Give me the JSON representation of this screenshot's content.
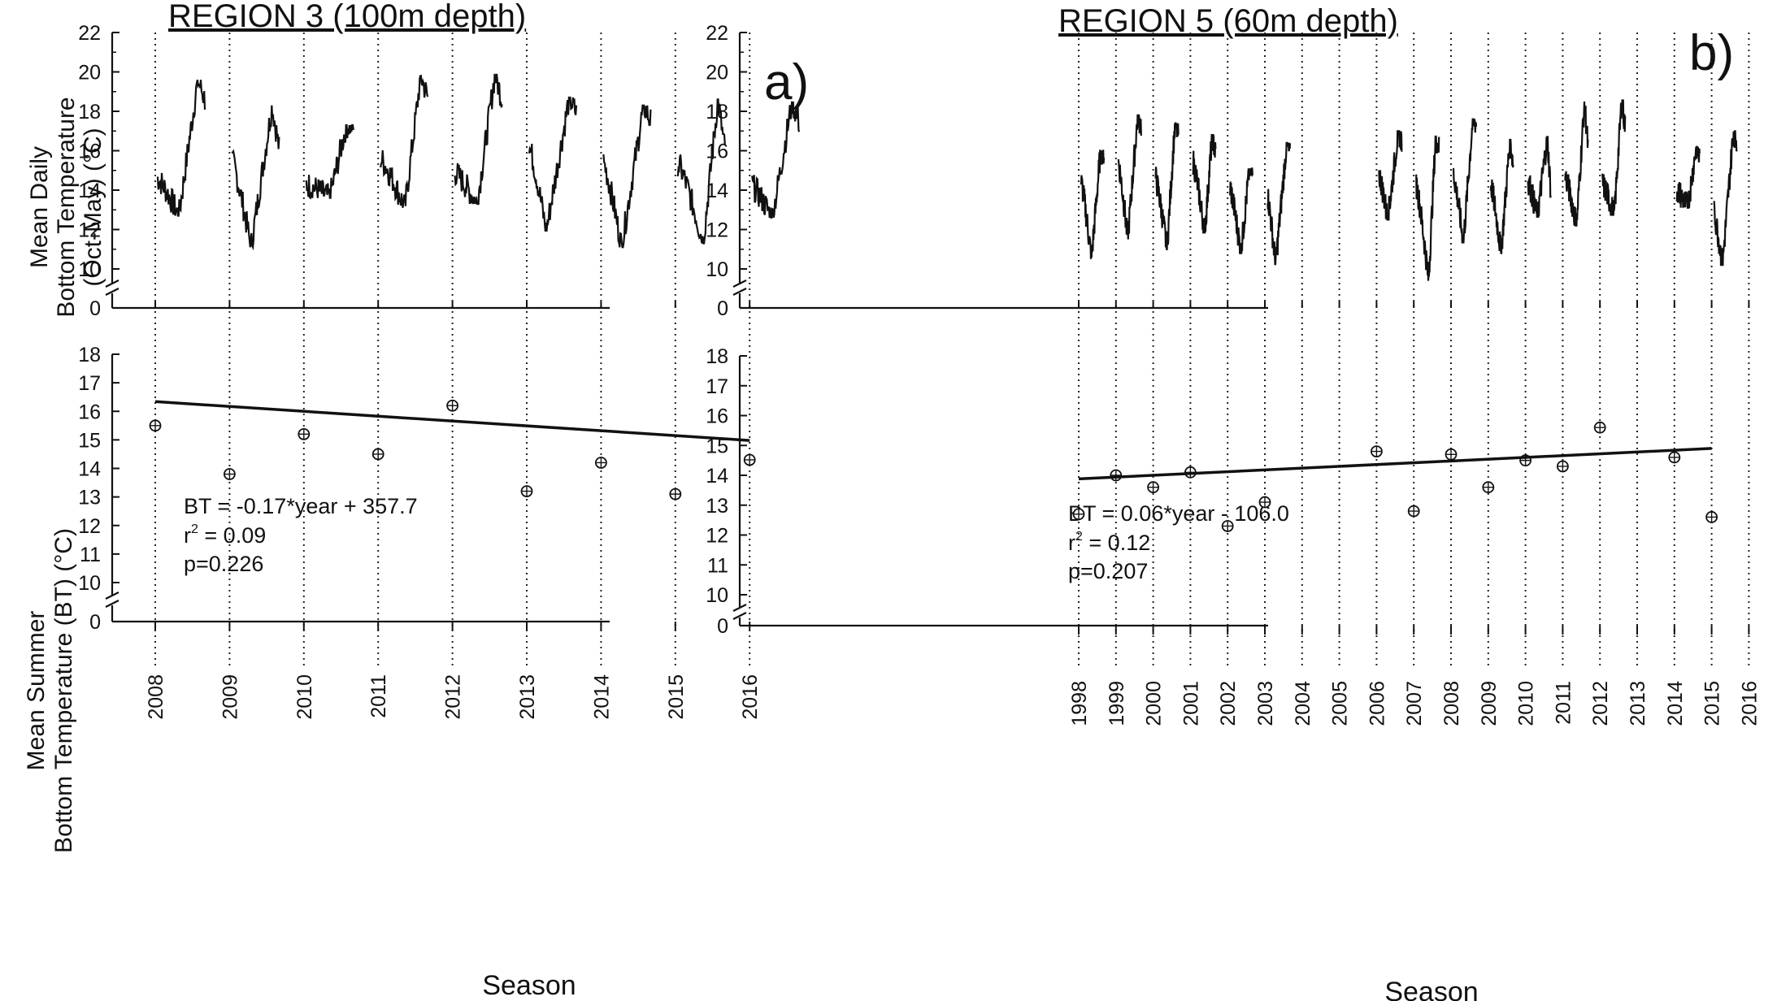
{
  "panels": [
    {
      "title": "REGION 3 (100m depth)",
      "label": "a)",
      "top_ylabel": [
        "Mean Daily",
        "Bottom Temperature",
        "(Oct-May) (°C)"
      ],
      "bottom_ylabel": [
        "Mean Summer",
        "Bottom Temperature (BT) (°C)"
      ],
      "xlabel": "Season",
      "x_ticks": [
        "2008",
        "2009",
        "2010",
        "2011",
        "2012",
        "2013",
        "2014",
        "2015",
        "2016"
      ],
      "top_y_ticks": [
        "22",
        "20",
        "18",
        "16",
        "14",
        "12",
        "10",
        "0"
      ],
      "bottom_y_ticks": [
        "18",
        "17",
        "16",
        "15",
        "14",
        "13",
        "12",
        "11",
        "10",
        "0"
      ],
      "equation": "BT = -0.17*year + 357.7",
      "r2_prefix": "r",
      "r2_sup": "2",
      "r2_value": " = 0.09",
      "p_value": "p=0.226"
    },
    {
      "title": "REGION 5 (60m depth)",
      "label": "b)",
      "xlabel": "Season",
      "x_ticks": [
        "1998",
        "1999",
        "2000",
        "2001",
        "2002",
        "2003",
        "2004",
        "2005",
        "2006",
        "2007",
        "2008",
        "2009",
        "2010",
        "2011",
        "2012",
        "2013",
        "2014",
        "2015",
        "2016"
      ],
      "top_y_ticks": [
        "22",
        "20",
        "18",
        "16",
        "14",
        "12",
        "10",
        "0"
      ],
      "bottom_y_ticks": [
        "18",
        "17",
        "16",
        "15",
        "14",
        "13",
        "12",
        "11",
        "10",
        "0"
      ],
      "equation": "BT = 0.06*year - 106.0",
      "r2_prefix": "r",
      "r2_sup": "2",
      "r2_value": " = 0.12",
      "p_value": "p=0.207"
    }
  ],
  "chart_data": [
    {
      "type": "line",
      "title": "REGION 3 (100m depth)",
      "ylabel": "Mean Daily Bottom Temperature (Oct-May) (°C)",
      "ylim": [
        0,
        22
      ],
      "axis_break": [
        0,
        10
      ],
      "series_seasons": [
        {
          "season_start": 2008,
          "min": 12.7,
          "max": 19.6,
          "start": 14.6,
          "end": 18.6
        },
        {
          "season_start": 2009,
          "min": 11.1,
          "max": 18.3,
          "start": 15.5,
          "end": 16.1
        },
        {
          "season_start": 2010,
          "min": 13.6,
          "max": 17.3,
          "start": 14.3,
          "end": 17.2
        },
        {
          "season_start": 2011,
          "min": 13.1,
          "max": 19.8,
          "start": 15.6,
          "end": 18.7
        },
        {
          "season_start": 2012,
          "min": 13.3,
          "max": 19.9,
          "start": 14.9,
          "end": 18.6
        },
        {
          "season_start": 2013,
          "min": 11.9,
          "max": 18.7,
          "start": 16.2,
          "end": 17.9
        },
        {
          "season_start": 2014,
          "min": 11.1,
          "max": 18.3,
          "start": 15.4,
          "end": 17.5
        },
        {
          "season_start": 2015,
          "min": 11.3,
          "max": 18.6,
          "start": 15.4,
          "end": 16.0
        },
        {
          "season_start": 2016,
          "min": 12.6,
          "max": 18.5,
          "start": 14.2,
          "end": 17.4
        }
      ]
    },
    {
      "type": "scatter",
      "ylabel": "Mean Summer Bottom Temperature (BT) (°C)",
      "xlabel": "Season",
      "ylim": [
        0,
        18
      ],
      "axis_break": [
        0,
        10
      ],
      "x": [
        2008,
        2009,
        2010,
        2011,
        2012,
        2013,
        2014,
        2015,
        2016
      ],
      "y": [
        15.5,
        13.8,
        15.2,
        14.5,
        16.2,
        13.2,
        14.2,
        13.1,
        14.3
      ],
      "fit": {
        "slope": -0.17,
        "intercept": 357.7,
        "r2": 0.09,
        "p": 0.226
      }
    },
    {
      "type": "line",
      "title": "REGION 5 (60m depth)",
      "ylabel": "",
      "ylim": [
        0,
        22
      ],
      "axis_break": [
        0,
        10
      ],
      "series_seasons": [
        {
          "season_start": 1998,
          "min": 10.5,
          "max": 16.0,
          "start": 14.4,
          "end": 15.9
        },
        {
          "season_start": 1999,
          "min": 11.5,
          "max": 17.8,
          "start": 15.4,
          "end": 17.3
        },
        {
          "season_start": 2000,
          "min": 11.0,
          "max": 17.4,
          "start": 14.6,
          "end": 16.7
        },
        {
          "season_start": 2001,
          "min": 11.8,
          "max": 16.8,
          "start": 15.5,
          "end": 15.8
        },
        {
          "season_start": 2002,
          "min": 10.8,
          "max": 15.1,
          "start": 14.1,
          "end": 14.8
        },
        {
          "season_start": 2003,
          "min": 10.2,
          "max": 16.4,
          "start": 13.8,
          "end": 15.7
        },
        {
          "season_start": 2006,
          "min": 12.5,
          "max": 17.0,
          "start": 14.8,
          "end": 16.5
        },
        {
          "season_start": 2007,
          "min": 9.4,
          "max": 16.7,
          "start": 14.3,
          "end": 16.2
        },
        {
          "season_start": 2008,
          "min": 11.3,
          "max": 17.6,
          "start": 14.8,
          "end": 17.4
        },
        {
          "season_start": 2009,
          "min": 10.8,
          "max": 16.6,
          "start": 14.3,
          "end": 15.2
        },
        {
          "season_start": 2010,
          "min": 12.6,
          "max": 16.7,
          "start": 14.5,
          "end": 14.0
        },
        {
          "season_start": 2011,
          "min": 12.2,
          "max": 18.5,
          "start": 14.7,
          "end": 16.2
        },
        {
          "season_start": 2012,
          "min": 12.7,
          "max": 18.6,
          "start": 14.3,
          "end": 17.2
        },
        {
          "season_start": 2014,
          "min": 13.1,
          "max": 16.2,
          "start": 14.0,
          "end": 15.6
        },
        {
          "season_start": 2015,
          "min": 10.2,
          "max": 17.0,
          "start": 12.8,
          "end": 16.5
        }
      ]
    },
    {
      "type": "scatter",
      "xlabel": "Season",
      "ylim": [
        0,
        18
      ],
      "axis_break": [
        0,
        10
      ],
      "x": [
        1998,
        1999,
        2000,
        2001,
        2002,
        2003,
        2006,
        2007,
        2008,
        2009,
        2010,
        2011,
        2012,
        2014,
        2015
      ],
      "y": [
        12.7,
        14.0,
        13.6,
        14.1,
        12.3,
        13.1,
        14.8,
        12.8,
        14.7,
        13.6,
        14.5,
        14.3,
        15.6,
        14.6,
        12.6
      ],
      "fit": {
        "slope": 0.06,
        "intercept": -106.0,
        "r2": 0.12,
        "p": 0.207
      }
    }
  ]
}
